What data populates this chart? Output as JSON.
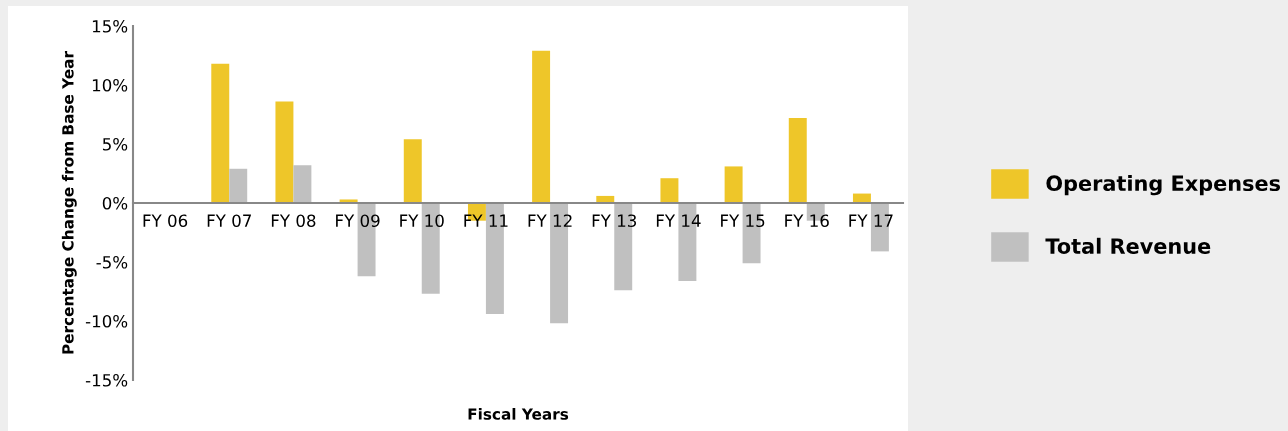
{
  "chart_data": {
    "type": "bar",
    "xlabel": "Fiscal Years",
    "ylabel": "Percentage Change from Base Year",
    "categories": [
      "FY 06",
      "FY 07",
      "FY 08",
      "FY 09",
      "FY 10",
      "FY 11",
      "FY 12",
      "FY 13",
      "FY 14",
      "FY 15",
      "FY 16",
      "FY 17"
    ],
    "series": [
      {
        "name": "Operating Expenses",
        "color": "#eec629",
        "values": [
          0,
          11.8,
          8.6,
          0.3,
          5.4,
          -1.5,
          12.9,
          0.6,
          2.1,
          3.1,
          7.2,
          0.8
        ]
      },
      {
        "name": "Total Revenue",
        "color": "#c0c0c0",
        "values": [
          0,
          2.9,
          3.2,
          -6.2,
          -7.7,
          -9.4,
          -10.2,
          -7.4,
          -6.6,
          -5.1,
          -1.5,
          -4.1
        ]
      }
    ],
    "ylim": [
      -15,
      15
    ],
    "yticks": [
      {
        "value": -15,
        "label": "-15%"
      },
      {
        "value": -10,
        "label": "-10%"
      },
      {
        "value": -5,
        "label": "-5%"
      },
      {
        "value": 0,
        "label": "0%"
      },
      {
        "value": 5,
        "label": "5%"
      },
      {
        "value": 10,
        "label": "10%"
      },
      {
        "value": 15,
        "label": "15%"
      }
    ],
    "grid": false,
    "legend": "right"
  }
}
